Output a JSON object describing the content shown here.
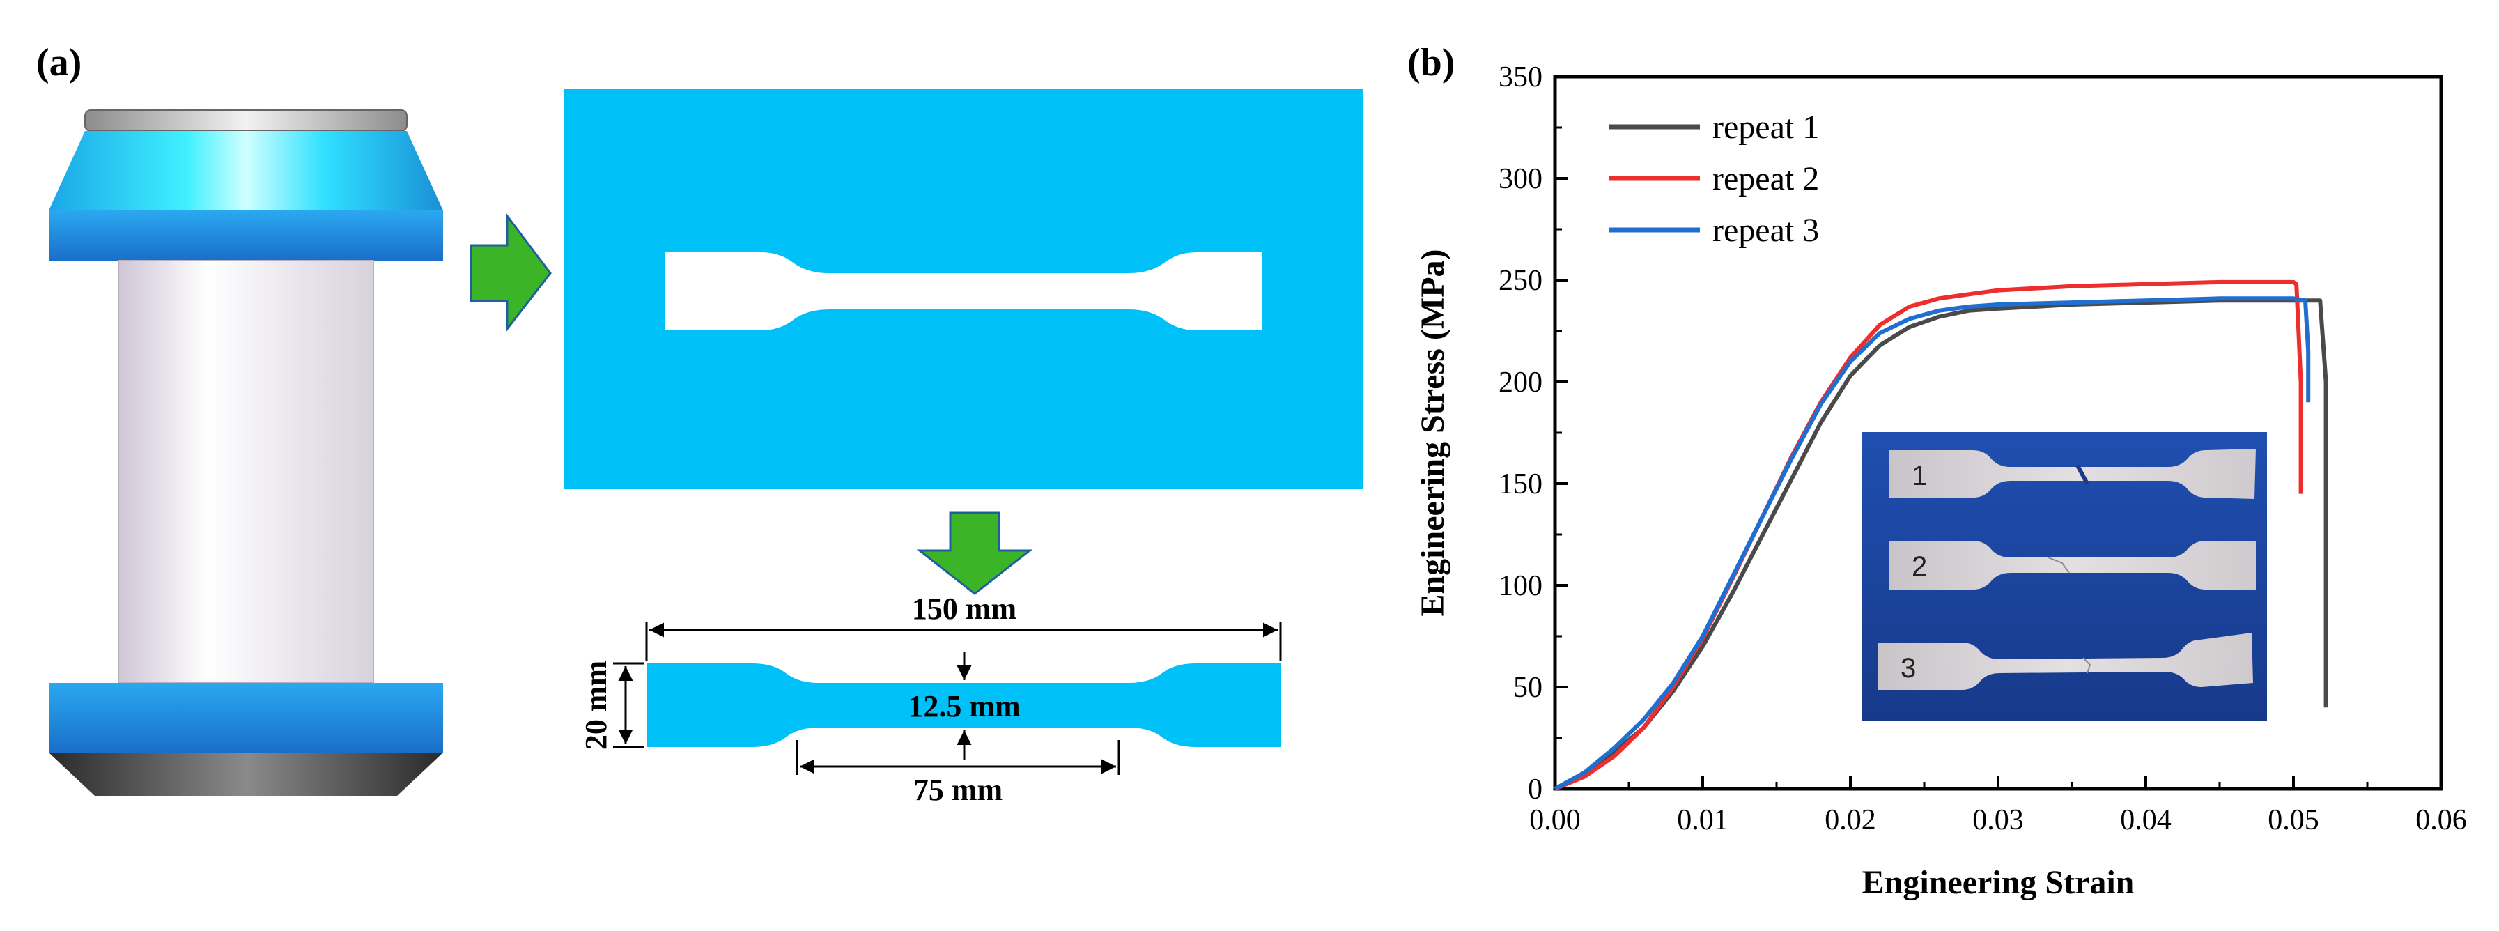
{
  "panel_a": {
    "label": "(a)",
    "dimensions": {
      "length": "150 mm",
      "width": "20 mm",
      "gauge_width": "12.5 mm",
      "gauge_length": "75 mm"
    },
    "colors": {
      "sheet": "#00c0f8",
      "arrow": "#3cb428",
      "arrow_outline": "#1f5fa0"
    }
  },
  "panel_b": {
    "label": "(b)",
    "inset": {
      "labels": [
        "1",
        "2",
        "3"
      ],
      "background": "#1a3f9a"
    }
  },
  "chart_data": {
    "type": "line",
    "xlabel": "Engineering Strain",
    "ylabel": "Engineering Stress (MPa)",
    "xlim": [
      0,
      0.06
    ],
    "ylim": [
      0,
      350
    ],
    "xticks": [
      "0.00",
      "0.01",
      "0.02",
      "0.03",
      "0.04",
      "0.05",
      "0.06"
    ],
    "yticks": [
      "0",
      "50",
      "100",
      "150",
      "200",
      "250",
      "300",
      "350"
    ],
    "legend_position": "top-left",
    "series": [
      {
        "name": "repeat 1",
        "color": "#4a4a4a",
        "x": [
          0,
          0.002,
          0.004,
          0.006,
          0.008,
          0.01,
          0.012,
          0.014,
          0.016,
          0.018,
          0.02,
          0.022,
          0.024,
          0.026,
          0.028,
          0.03,
          0.035,
          0.04,
          0.045,
          0.05,
          0.0518,
          0.0522,
          0.0522
        ],
        "y": [
          0,
          8,
          18,
          30,
          48,
          70,
          96,
          124,
          152,
          180,
          203,
          218,
          227,
          232,
          235,
          236,
          238,
          239,
          240,
          240,
          240,
          200,
          40
        ]
      },
      {
        "name": "repeat 2",
        "color": "#ee2d2d",
        "x": [
          0,
          0.002,
          0.004,
          0.006,
          0.008,
          0.01,
          0.012,
          0.014,
          0.016,
          0.018,
          0.02,
          0.022,
          0.024,
          0.026,
          0.028,
          0.03,
          0.035,
          0.04,
          0.045,
          0.05,
          0.0502,
          0.0505,
          0.0505
        ],
        "y": [
          0,
          6,
          16,
          30,
          50,
          74,
          103,
          133,
          163,
          190,
          212,
          228,
          237,
          241,
          243,
          245,
          247,
          248,
          249,
          249,
          248,
          200,
          145
        ]
      },
      {
        "name": "repeat 3",
        "color": "#1f6fd0",
        "x": [
          0,
          0.002,
          0.004,
          0.006,
          0.008,
          0.01,
          0.012,
          0.014,
          0.016,
          0.018,
          0.02,
          0.022,
          0.024,
          0.026,
          0.028,
          0.03,
          0.035,
          0.04,
          0.045,
          0.05,
          0.0508,
          0.051,
          0.051
        ],
        "y": [
          0,
          8,
          20,
          34,
          52,
          75,
          104,
          133,
          162,
          189,
          210,
          224,
          231,
          235,
          237,
          238,
          239,
          240,
          241,
          241,
          240,
          215,
          190
        ]
      }
    ]
  }
}
